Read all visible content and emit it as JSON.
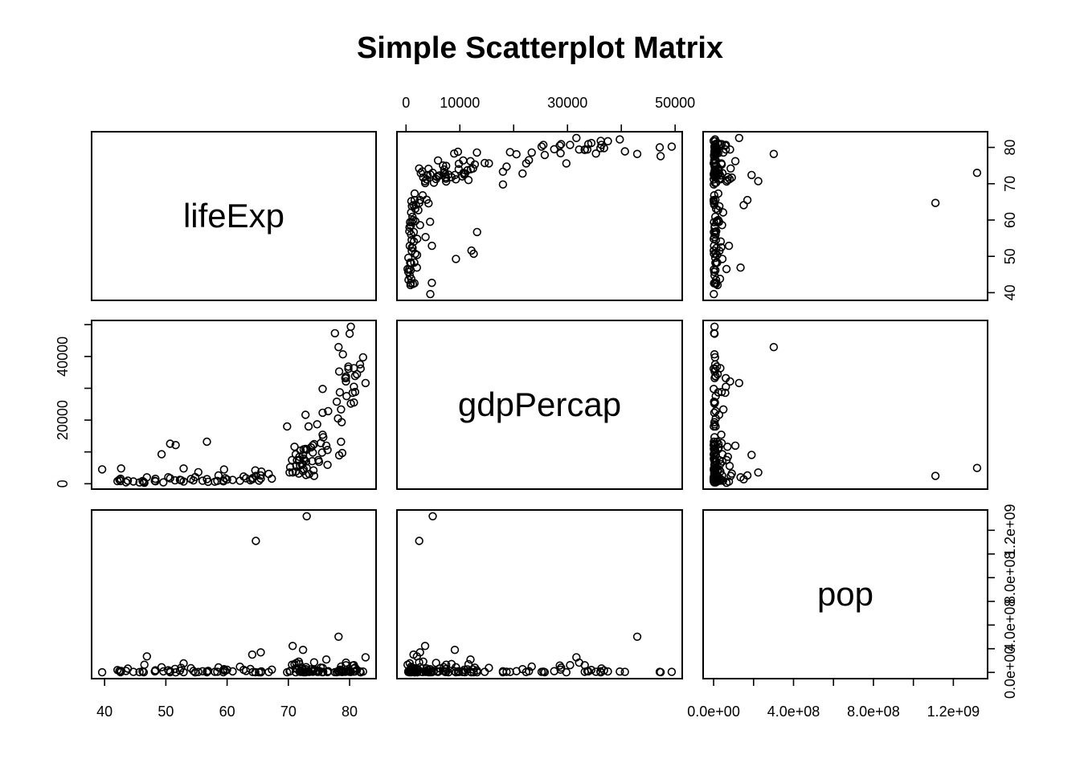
{
  "chart_data": {
    "type": "scatter",
    "title": "Simple Scatterplot Matrix",
    "variables": [
      "lifeExp",
      "gdpPercap",
      "pop"
    ],
    "axes": {
      "lifeExp": {
        "lim": [
          39.6,
          82.6
        ],
        "ticks": [
          40,
          50,
          60,
          70,
          80
        ],
        "tick_labels": [
          "40",
          "50",
          "60",
          "70",
          "80"
        ]
      },
      "gdpPercap": {
        "lim": [
          277,
          49357
        ],
        "ticks": [
          0,
          10000,
          20000,
          30000,
          40000,
          50000
        ],
        "tick_labels": [
          "0",
          "10000",
          "",
          "30000",
          "",
          "50000"
        ],
        "left_tick_labels": [
          "0",
          "",
          "20000",
          "",
          "40000",
          ""
        ]
      },
      "pop": {
        "lim": [
          199579,
          1318683096
        ],
        "ticks": [
          0,
          200000000,
          400000000,
          600000000,
          800000000,
          1000000000,
          1200000000
        ],
        "tick_labels": [
          "0.0e+00",
          "4.0e+08",
          "8.0e+08",
          "1.2e+09"
        ],
        "tick_label_values": [
          0,
          400000000,
          800000000,
          1200000000
        ]
      }
    },
    "points": [
      [
        43.8,
        975,
        31.9
      ],
      [
        76.4,
        5937,
        3.6
      ],
      [
        72.3,
        6223,
        33.3
      ],
      [
        42.7,
        4797,
        12.4
      ],
      [
        75.3,
        12779,
        40.3
      ],
      [
        81.2,
        34435,
        20.4
      ],
      [
        79.8,
        36126,
        8.2
      ],
      [
        75.6,
        29796,
        0.7
      ],
      [
        64.1,
        1391,
        150.4
      ],
      [
        79.4,
        33693,
        10.4
      ],
      [
        56.7,
        1441,
        8.1
      ],
      [
        65.6,
        3822,
        9.1
      ],
      [
        74.9,
        7446,
        4.6
      ],
      [
        50.7,
        12570,
        1.6
      ],
      [
        72.4,
        9066,
        190.0
      ],
      [
        73.0,
        10681,
        7.3
      ],
      [
        52.3,
        1217,
        14.3
      ],
      [
        49.6,
        430,
        8.4
      ],
      [
        59.7,
        1714,
        14.1
      ],
      [
        50.4,
        2042,
        17.7
      ],
      [
        80.7,
        36319,
        33.4
      ],
      [
        44.7,
        706,
        4.4
      ],
      [
        50.7,
        1704,
        10.2
      ],
      [
        78.6,
        13172,
        16.3
      ],
      [
        73.0,
        4959,
        1318.7
      ],
      [
        72.9,
        7007,
        44.2
      ],
      [
        65.2,
        986,
        0.7
      ],
      [
        46.5,
        278,
        64.6
      ],
      [
        55.3,
        3633,
        3.8
      ],
      [
        78.8,
        9645,
        4.1
      ],
      [
        48.3,
        1544,
        18.0
      ],
      [
        75.7,
        14619,
        4.5
      ],
      [
        78.3,
        8948,
        11.4
      ],
      [
        76.5,
        22833,
        10.2
      ],
      [
        78.3,
        35278,
        5.5
      ],
      [
        54.8,
        2082,
        0.5
      ],
      [
        72.2,
        6025,
        9.3
      ],
      [
        75.0,
        6873,
        13.8
      ],
      [
        71.3,
        5581,
        80.3
      ],
      [
        71.9,
        5728,
        6.9
      ],
      [
        51.6,
        12154,
        0.6
      ],
      [
        58.0,
        641,
        4.9
      ],
      [
        52.9,
        690,
        76.5
      ],
      [
        79.3,
        33207,
        5.2
      ],
      [
        80.7,
        30470,
        61.1
      ],
      [
        56.7,
        13206,
        1.5
      ],
      [
        59.4,
        753,
        1.7
      ],
      [
        79.4,
        32170,
        82.4
      ],
      [
        60.0,
        1327,
        22.9
      ],
      [
        79.5,
        27538,
        10.7
      ],
      [
        70.3,
        5186,
        12.6
      ],
      [
        56.0,
        943,
        9.9
      ],
      [
        46.4,
        579,
        1.5
      ],
      [
        60.9,
        1202,
        8.5
      ],
      [
        70.2,
        3548,
        7.5
      ],
      [
        82.2,
        39725,
        6.98
      ],
      [
        73.3,
        18009,
        9.96
      ],
      [
        81.8,
        36181,
        0.3
      ],
      [
        64.7,
        2452,
        1110.4
      ],
      [
        70.7,
        3541,
        223.5
      ],
      [
        71.0,
        11606,
        69.5
      ],
      [
        59.5,
        4471,
        27.5
      ],
      [
        78.9,
        40676,
        4.1
      ],
      [
        80.7,
        25523,
        6.4
      ],
      [
        80.5,
        28570,
        58.1
      ],
      [
        72.6,
        7321,
        2.8
      ],
      [
        82.6,
        31656,
        127.5
      ],
      [
        72.5,
        4519,
        6.1
      ],
      [
        54.1,
        1463,
        35.6
      ],
      [
        67.3,
        1593,
        23.3
      ],
      [
        78.6,
        23348,
        49.0
      ],
      [
        77.6,
        47307,
        2.5
      ],
      [
        72.0,
        10461,
        3.9
      ],
      [
        42.6,
        1569,
        2.0
      ],
      [
        45.7,
        415,
        3.2
      ],
      [
        74.0,
        12057,
        6.0
      ],
      [
        59.4,
        1045,
        19.2
      ],
      [
        48.3,
        759,
        13.3
      ],
      [
        74.2,
        12452,
        24.8
      ],
      [
        54.5,
        1042,
        12.0
      ],
      [
        64.2,
        1803,
        3.3
      ],
      [
        72.8,
        10957,
        1.3
      ],
      [
        76.2,
        11978,
        108.7
      ],
      [
        66.8,
        3096,
        2.9
      ],
      [
        71.2,
        9254,
        0.7
      ],
      [
        71.2,
        3820,
        33.8
      ],
      [
        42.1,
        824,
        19.95
      ],
      [
        62.1,
        944,
        47.8
      ],
      [
        52.9,
        4811,
        2.1
      ],
      [
        63.8,
        1091,
        28.9
      ],
      [
        79.8,
        36798,
        16.6
      ],
      [
        80.2,
        25185,
        4.1
      ],
      [
        72.9,
        2749,
        5.7
      ],
      [
        56.9,
        620,
        12.9
      ],
      [
        46.9,
        2014,
        135.0
      ],
      [
        80.2,
        49357,
        4.6
      ],
      [
        75.6,
        22316,
        3.2
      ],
      [
        65.5,
        2606,
        169.3
      ],
      [
        75.5,
        9809,
        3.2
      ],
      [
        64.6,
        4185,
        1.8
      ],
      [
        71.8,
        7409,
        6.7
      ],
      [
        71.4,
        7408,
        28.7
      ],
      [
        71.7,
        3190,
        91.1
      ],
      [
        75.6,
        15390,
        38.5
      ],
      [
        78.1,
        20510,
        10.6
      ],
      [
        78.7,
        19329,
        4.0
      ],
      [
        72.5,
        7885,
        0.8
      ],
      [
        72.5,
        10808,
        22.3
      ],
      [
        46.2,
        863,
        8.9
      ],
      [
        65.5,
        1598,
        0.2
      ],
      [
        72.8,
        21655,
        27.6
      ],
      [
        63.1,
        1712,
        12.3
      ],
      [
        74.0,
        9787,
        10.2
      ],
      [
        42.6,
        862,
        6.1
      ],
      [
        80.0,
        47143,
        4.6
      ],
      [
        74.7,
        18678,
        5.4
      ],
      [
        77.9,
        25768,
        2.0
      ],
      [
        48.2,
        926,
        9.1
      ],
      [
        49.3,
        9270,
        44.0
      ],
      [
        80.9,
        28821,
        40.4
      ],
      [
        72.4,
        3970,
        20.4
      ],
      [
        58.6,
        2602,
        42.3
      ],
      [
        39.6,
        4513,
        1.1
      ],
      [
        80.9,
        33860,
        9.0
      ],
      [
        81.7,
        37506,
        7.6
      ],
      [
        74.1,
        4185,
        19.3
      ],
      [
        78.4,
        28718,
        23.2
      ],
      [
        52.5,
        1107,
        38.1
      ],
      [
        70.6,
        7458,
        65.1
      ],
      [
        58.4,
        883,
        5.7
      ],
      [
        69.8,
        18009,
        1.1
      ],
      [
        73.9,
        7093,
        10.3
      ],
      [
        71.8,
        8458,
        71.2
      ],
      [
        51.5,
        1056,
        29.2
      ],
      [
        79.4,
        33203,
        60.8
      ],
      [
        78.2,
        42952,
        301.1
      ],
      [
        76.4,
        10611,
        3.4
      ],
      [
        73.7,
        11416,
        26.1
      ],
      [
        74.2,
        2442,
        85.3
      ],
      [
        73.4,
        3025,
        4.0
      ],
      [
        62.7,
        2281,
        22.2
      ],
      [
        42.4,
        1271,
        11.7
      ],
      [
        43.5,
        470,
        12.3
      ]
    ]
  }
}
